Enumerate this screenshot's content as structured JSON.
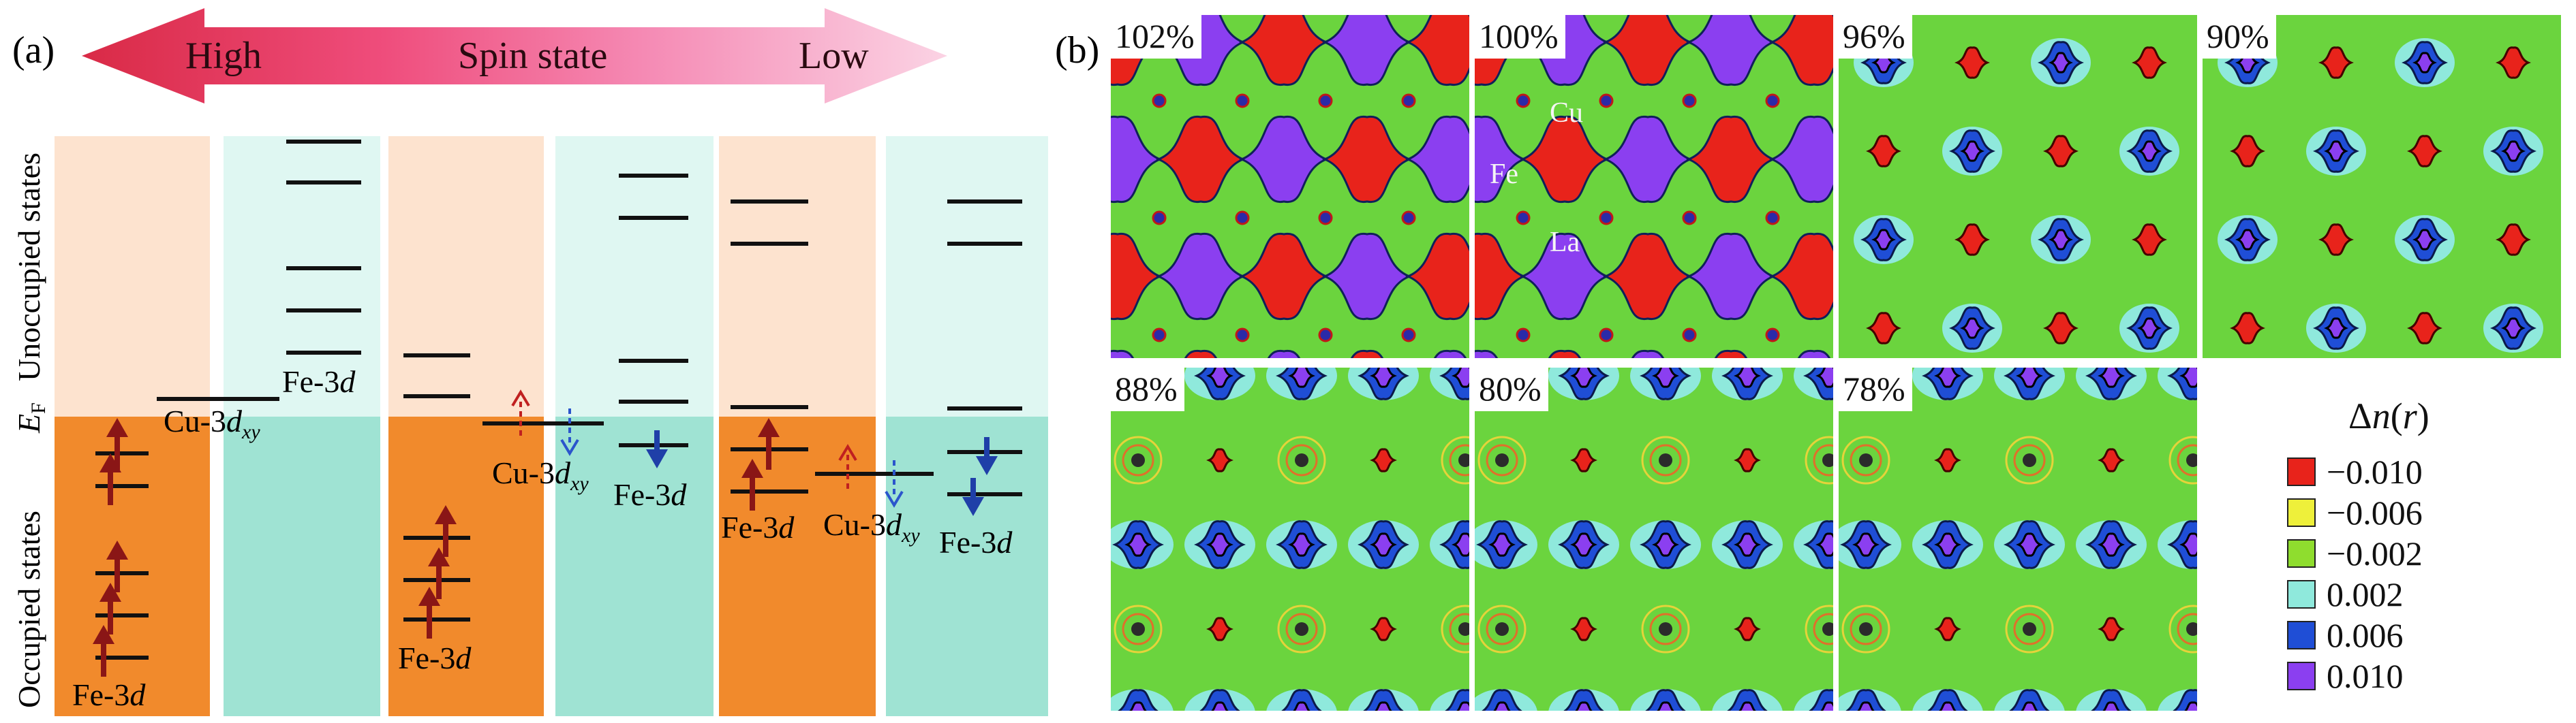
{
  "panel_a": {
    "label": "(a)",
    "arrow": {
      "left_label": "High",
      "center_label": "Spin state",
      "right_label": "Low"
    },
    "axis": {
      "upper_label": "Unoccupied states",
      "lower_label": "Occupied states",
      "fermi_label": "E",
      "fermi_sub": "F"
    },
    "level_labels": {
      "fe3d_main": "Fe-3",
      "fe3d_italic": "d",
      "cu3d_main": "Cu-3",
      "cu3d_italic": "d",
      "cu3d_sub": "xy"
    }
  },
  "panel_b": {
    "label": "(b)",
    "maps": [
      {
        "pct": "102%",
        "type": "high"
      },
      {
        "pct": "100%",
        "type": "high",
        "labels": [
          "Cu",
          "Fe",
          "La"
        ]
      },
      {
        "pct": "96%",
        "type": "mid"
      },
      {
        "pct": "90%",
        "type": "mid"
      },
      {
        "pct": "88%",
        "type": "low"
      },
      {
        "pct": "80%",
        "type": "low"
      },
      {
        "pct": "78%",
        "type": "low"
      }
    ],
    "legend": {
      "title_symbol": "Δ",
      "title_italic": "n",
      "title_paren_open": "(",
      "title_arg": "r",
      "title_paren_close": ")",
      "entries": [
        {
          "value": "−0.010",
          "color": "#e8231b"
        },
        {
          "value": "−0.006",
          "color": "#eef03a"
        },
        {
          "value": "−0.002",
          "color": "#8fdd2e"
        },
        {
          "value": "0.002",
          "color": "#8fe9dc"
        },
        {
          "value": "0.006",
          "color": "#1f4ed6"
        },
        {
          "value": "0.010",
          "color": "#8b3ff0"
        }
      ]
    }
  },
  "colors": {
    "unocc_orange": "#fde3cf",
    "unocc_cyan": "#dff7f2",
    "occ_orange": "#f18a2c",
    "occ_cyan": "#9fe3d3",
    "up_arrow": "#8a1616",
    "down_arrow": "#1f3fa8",
    "map_green": "#6bd43e",
    "lobe_red": "#e8231b",
    "lobe_purple": "#8b3ff0",
    "lobe_blue": "#1f4ed6"
  }
}
